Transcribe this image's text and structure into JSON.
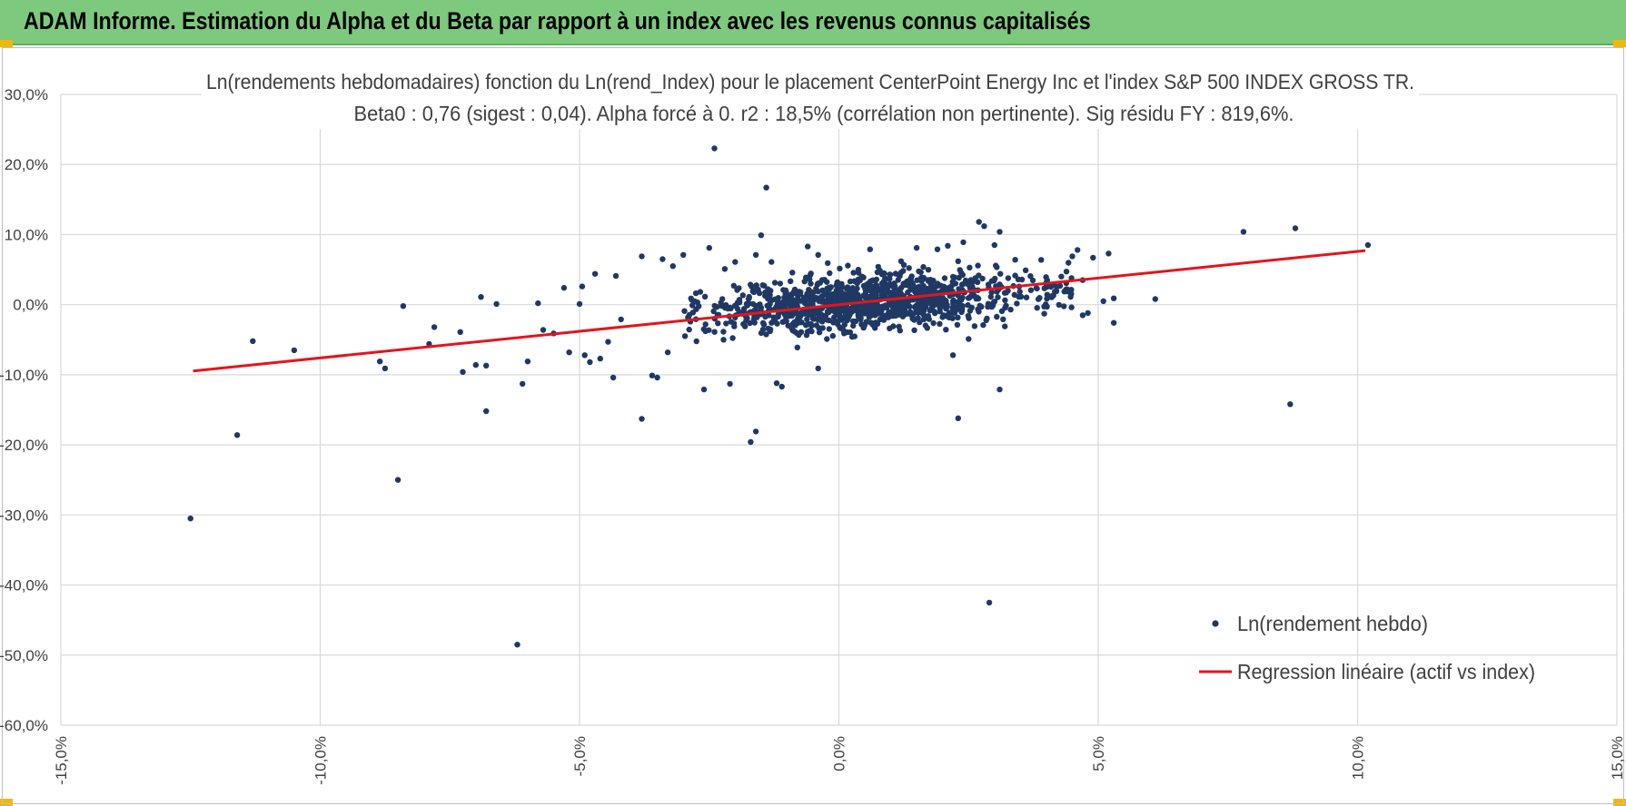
{
  "header": {
    "title": "ADAM Informe. Estimation du Alpha et du Beta par rapport à un index avec les revenus connus capitalisés"
  },
  "colors": {
    "banner": "#7dc97d",
    "accent_corner": "#f2b807",
    "points": "#1f3864",
    "regression": "#e3151c",
    "grid": "#d9d9d9",
    "text": "#404040"
  },
  "chart_data": {
    "type": "scatter",
    "title_line1": "Ln(rendements hebdomadaires) fonction du Ln(rend_Index) pour le placement CenterPoint Energy Inc et l'index S&P 500 INDEX GROSS TR.",
    "title_line2": "Beta0 : 0,76 (sigest : 0,04).  Alpha forcé à 0. r2 : 18,5% (corrélation non pertinente). Sig résidu FY : 819,6%.",
    "xlim": [
      -0.15,
      0.15
    ],
    "ylim": [
      -0.6,
      0.3
    ],
    "x_ticks": [
      -0.15,
      -0.1,
      -0.05,
      0.0,
      0.05,
      0.1,
      0.15
    ],
    "x_tick_labels": [
      "-15,0%",
      "-10,0%",
      "-5,0%",
      "0,0%",
      "5,0%",
      "10,0%",
      "15,0%"
    ],
    "y_ticks": [
      0.3,
      0.2,
      0.1,
      0.0,
      -0.1,
      -0.2,
      -0.3,
      -0.4,
      -0.5,
      -0.6
    ],
    "y_tick_labels": [
      "30,0%",
      "20,0%",
      "10,0%",
      "0,0%",
      "-10,0%",
      "-20,0%",
      "-30,0%",
      "-40,0%",
      "-50,0%",
      "-60,0%"
    ],
    "grid": true,
    "legend_position": "bottom-right",
    "series": [
      {
        "name": "Ln(rendement hebdo)",
        "kind": "scatter",
        "points": [
          [
            -0.125,
            -0.305
          ],
          [
            -0.116,
            -0.186
          ],
          [
            -0.113,
            -0.052
          ],
          [
            -0.105,
            -0.065
          ],
          [
            -0.0885,
            -0.081
          ],
          [
            -0.0875,
            -0.091
          ],
          [
            -0.084,
            -0.002
          ],
          [
            -0.085,
            -0.25
          ],
          [
            -0.079,
            -0.056
          ],
          [
            -0.078,
            -0.032
          ],
          [
            -0.073,
            -0.039
          ],
          [
            -0.0725,
            -0.096
          ],
          [
            -0.07,
            -0.086
          ],
          [
            -0.069,
            0.011
          ],
          [
            -0.068,
            -0.087
          ],
          [
            -0.068,
            -0.152
          ],
          [
            -0.066,
            0.001
          ],
          [
            -0.062,
            -0.485
          ],
          [
            -0.061,
            -0.113
          ],
          [
            -0.06,
            -0.081
          ],
          [
            -0.058,
            0.002
          ],
          [
            -0.057,
            -0.036
          ],
          [
            -0.055,
            -0.041
          ],
          [
            -0.053,
            0.024
          ],
          [
            -0.052,
            -0.068
          ],
          [
            -0.05,
            0.001
          ],
          [
            -0.0495,
            0.026
          ],
          [
            -0.049,
            -0.072
          ],
          [
            -0.048,
            -0.082
          ],
          [
            -0.047,
            0.044
          ],
          [
            -0.046,
            -0.077
          ],
          [
            -0.0445,
            -0.053
          ],
          [
            -0.043,
            0.041
          ],
          [
            -0.0435,
            -0.104
          ],
          [
            -0.042,
            -0.021
          ],
          [
            -0.038,
            0.069
          ],
          [
            -0.038,
            -0.163
          ],
          [
            -0.036,
            -0.101
          ],
          [
            -0.035,
            -0.104
          ],
          [
            -0.034,
            0.065
          ],
          [
            -0.033,
            -0.068
          ],
          [
            -0.032,
            0.055
          ],
          [
            -0.03,
            0.071
          ],
          [
            -0.029,
            -0.02
          ],
          [
            -0.026,
            -0.121
          ],
          [
            -0.025,
            0.081
          ],
          [
            -0.024,
            0.223
          ],
          [
            -0.022,
            0.051
          ],
          [
            -0.021,
            -0.113
          ],
          [
            -0.02,
            0.061
          ],
          [
            -0.016,
            0.071
          ],
          [
            -0.017,
            -0.196
          ],
          [
            -0.016,
            -0.181
          ],
          [
            -0.015,
            0.099
          ],
          [
            -0.014,
            0.167
          ],
          [
            -0.013,
            0.061
          ],
          [
            -0.012,
            -0.112
          ],
          [
            -0.011,
            -0.117
          ],
          [
            -0.008,
            -0.061
          ],
          [
            -0.006,
            0.083
          ],
          [
            -0.004,
            0.071
          ],
          [
            -0.004,
            -0.091
          ],
          [
            0.001,
            -0.041
          ],
          [
            0.006,
            0.079
          ],
          [
            0.012,
            0.062
          ],
          [
            0.015,
            0.081
          ],
          [
            0.019,
            0.079
          ],
          [
            0.021,
            0.084
          ],
          [
            0.023,
            0.062
          ],
          [
            0.024,
            0.089
          ],
          [
            0.022,
            -0.072
          ],
          [
            0.023,
            -0.162
          ],
          [
            0.025,
            -0.049
          ],
          [
            0.027,
            0.118
          ],
          [
            0.028,
            0.112
          ],
          [
            0.03,
            0.085
          ],
          [
            0.031,
            0.104
          ],
          [
            0.029,
            -0.425
          ],
          [
            0.031,
            -0.121
          ],
          [
            0.032,
            -0.031
          ],
          [
            0.034,
            0.064
          ],
          [
            0.036,
            0.049
          ],
          [
            0.04,
            0.029
          ],
          [
            0.041,
            0.012
          ],
          [
            0.044,
            0.022
          ],
          [
            0.045,
            0.069
          ],
          [
            0.046,
            0.078
          ],
          [
            0.047,
            0.035
          ],
          [
            0.047,
            -0.015
          ],
          [
            0.048,
            -0.012
          ],
          [
            0.049,
            0.067
          ],
          [
            0.051,
            0.005
          ],
          [
            0.052,
            0.073
          ],
          [
            0.053,
            -0.026
          ],
          [
            0.053,
            0.009
          ],
          [
            0.061,
            0.008
          ],
          [
            0.078,
            0.104
          ],
          [
            0.087,
            -0.142
          ],
          [
            0.088,
            0.109
          ],
          [
            0.102,
            0.085
          ]
        ],
        "dense_cloud": {
          "x_range": [
            -0.03,
            0.045
          ],
          "center": [
            0.005,
            0.005
          ],
          "slope": 0.5,
          "count": 1150
        }
      },
      {
        "name": "Regression linéaire (actif vs index)",
        "kind": "line",
        "points": [
          [
            -0.1245,
            -0.0946
          ],
          [
            0.1015,
            0.0771
          ]
        ]
      }
    ]
  }
}
